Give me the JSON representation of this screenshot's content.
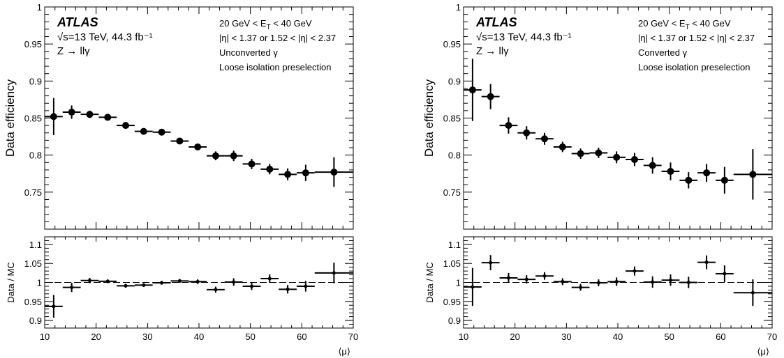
{
  "colors": {
    "markers": "#000000",
    "reference_line": "#000000",
    "background": "#ffffff"
  },
  "chart_data": [
    {
      "type": "scatter",
      "panel": "left",
      "experiment": "ATLAS",
      "energy_lumi": "√s=13 TeV, 44.3 fb⁻¹",
      "process": "Z → llγ",
      "et_cut": "20 GeV < E_T < 40 GeV",
      "eta_cut": "|η| < 1.37 or 1.52 < |η| < 2.37",
      "category": "Unconverted γ",
      "selection": "Loose isolation preselection",
      "xlabel": "⟨μ⟩",
      "xlim": [
        10,
        70
      ],
      "xticks": [
        "10",
        "20",
        "30",
        "40",
        "50",
        "60",
        "70"
      ],
      "main": {
        "ylabel": "Data efficiency",
        "ylim": [
          0.7,
          1.0
        ],
        "yticks": [
          "0.75",
          "0.8",
          "0.85",
          "0.9",
          "0.95",
          "1"
        ],
        "points": [
          {
            "x": 11.75,
            "xlo": 10,
            "xhi": 13.5,
            "y": 0.852,
            "err": 0.025
          },
          {
            "x": 15.25,
            "xlo": 13.5,
            "xhi": 17,
            "y": 0.858,
            "err": 0.009
          },
          {
            "x": 18.75,
            "xlo": 17,
            "xhi": 20.5,
            "y": 0.855,
            "err": 0.005
          },
          {
            "x": 22.25,
            "xlo": 20.5,
            "xhi": 24,
            "y": 0.851,
            "err": 0.003
          },
          {
            "x": 25.75,
            "xlo": 24,
            "xhi": 27.5,
            "y": 0.84,
            "err": 0.003
          },
          {
            "x": 29.25,
            "xlo": 27.5,
            "xhi": 31,
            "y": 0.832,
            "err": 0.003
          },
          {
            "x": 32.75,
            "xlo": 31,
            "xhi": 34.5,
            "y": 0.831,
            "err": 0.003
          },
          {
            "x": 36.25,
            "xlo": 34.5,
            "xhi": 38,
            "y": 0.819,
            "err": 0.003
          },
          {
            "x": 39.75,
            "xlo": 38,
            "xhi": 41.5,
            "y": 0.811,
            "err": 0.004
          },
          {
            "x": 43.25,
            "xlo": 41.5,
            "xhi": 45,
            "y": 0.799,
            "err": 0.006
          },
          {
            "x": 46.75,
            "xlo": 45,
            "xhi": 48.5,
            "y": 0.799,
            "err": 0.007
          },
          {
            "x": 50.25,
            "xlo": 48.5,
            "xhi": 52,
            "y": 0.788,
            "err": 0.007
          },
          {
            "x": 53.75,
            "xlo": 52,
            "xhi": 55.5,
            "y": 0.781,
            "err": 0.007
          },
          {
            "x": 57.25,
            "xlo": 55.5,
            "xhi": 59,
            "y": 0.774,
            "err": 0.008
          },
          {
            "x": 60.75,
            "xlo": 59,
            "xhi": 62.5,
            "y": 0.776,
            "err": 0.011
          },
          {
            "x": 66.25,
            "xlo": 62.5,
            "xhi": 70,
            "y": 0.777,
            "err": 0.02
          }
        ]
      },
      "ratio": {
        "ylabel": "Data / MC",
        "ylim": [
          0.88,
          1.12
        ],
        "yticks": [
          "0.9",
          "0.95",
          "1",
          "1.05",
          "1.1"
        ],
        "reference": 1.0,
        "points": [
          {
            "x": 11.75,
            "xlo": 10,
            "xhi": 13.5,
            "y": 0.937,
            "err": 0.03
          },
          {
            "x": 15.25,
            "xlo": 13.5,
            "xhi": 17,
            "y": 0.987,
            "err": 0.012
          },
          {
            "x": 18.75,
            "xlo": 17,
            "xhi": 20.5,
            "y": 1.005,
            "err": 0.007
          },
          {
            "x": 22.25,
            "xlo": 20.5,
            "xhi": 24,
            "y": 1.003,
            "err": 0.005
          },
          {
            "x": 25.75,
            "xlo": 24,
            "xhi": 27.5,
            "y": 0.991,
            "err": 0.005
          },
          {
            "x": 29.25,
            "xlo": 27.5,
            "xhi": 31,
            "y": 0.993,
            "err": 0.005
          },
          {
            "x": 32.75,
            "xlo": 31,
            "xhi": 34.5,
            "y": 0.999,
            "err": 0.005
          },
          {
            "x": 36.25,
            "xlo": 34.5,
            "xhi": 38,
            "y": 1.004,
            "err": 0.005
          },
          {
            "x": 39.75,
            "xlo": 38,
            "xhi": 41.5,
            "y": 1.002,
            "err": 0.006
          },
          {
            "x": 43.25,
            "xlo": 41.5,
            "xhi": 45,
            "y": 0.981,
            "err": 0.008
          },
          {
            "x": 46.75,
            "xlo": 45,
            "xhi": 48.5,
            "y": 1.001,
            "err": 0.01
          },
          {
            "x": 50.25,
            "xlo": 48.5,
            "xhi": 52,
            "y": 0.99,
            "err": 0.01
          },
          {
            "x": 53.75,
            "xlo": 52,
            "xhi": 55.5,
            "y": 1.01,
            "err": 0.011
          },
          {
            "x": 57.25,
            "xlo": 55.5,
            "xhi": 59,
            "y": 0.982,
            "err": 0.011
          },
          {
            "x": 60.75,
            "xlo": 59,
            "xhi": 62.5,
            "y": 0.99,
            "err": 0.014
          },
          {
            "x": 66.25,
            "xlo": 62.5,
            "xhi": 70,
            "y": 1.025,
            "err": 0.027
          }
        ]
      }
    },
    {
      "type": "scatter",
      "panel": "right",
      "experiment": "ATLAS",
      "energy_lumi": "√s=13 TeV, 44.3 fb⁻¹",
      "process": "Z → llγ",
      "et_cut": "20 GeV < E_T < 40 GeV",
      "eta_cut": "|η| < 1.37 or 1.52 < |η| < 2.37",
      "category": "Converted γ",
      "selection": "Loose isolation preselection",
      "xlabel": "⟨μ⟩",
      "xlim": [
        10,
        70
      ],
      "xticks": [
        "10",
        "20",
        "30",
        "40",
        "50",
        "60",
        "70"
      ],
      "main": {
        "ylabel": "Data efficiency",
        "ylim": [
          0.7,
          1.0
        ],
        "yticks": [
          "0.75",
          "0.8",
          "0.85",
          "0.9",
          "0.95",
          "1"
        ],
        "points": [
          {
            "x": 11.75,
            "xlo": 10,
            "xhi": 13.5,
            "y": 0.888,
            "err": 0.042
          },
          {
            "x": 15.25,
            "xlo": 13.5,
            "xhi": 17,
            "y": 0.879,
            "err": 0.017
          },
          {
            "x": 18.75,
            "xlo": 17,
            "xhi": 20.5,
            "y": 0.84,
            "err": 0.011
          },
          {
            "x": 22.25,
            "xlo": 20.5,
            "xhi": 24,
            "y": 0.83,
            "err": 0.009
          },
          {
            "x": 25.75,
            "xlo": 24,
            "xhi": 27.5,
            "y": 0.822,
            "err": 0.008
          },
          {
            "x": 29.25,
            "xlo": 27.5,
            "xhi": 31,
            "y": 0.811,
            "err": 0.007
          },
          {
            "x": 32.75,
            "xlo": 31,
            "xhi": 34.5,
            "y": 0.802,
            "err": 0.007
          },
          {
            "x": 36.25,
            "xlo": 34.5,
            "xhi": 38,
            "y": 0.803,
            "err": 0.007
          },
          {
            "x": 39.75,
            "xlo": 38,
            "xhi": 41.5,
            "y": 0.797,
            "err": 0.008
          },
          {
            "x": 43.25,
            "xlo": 41.5,
            "xhi": 45,
            "y": 0.794,
            "err": 0.009
          },
          {
            "x": 46.75,
            "xlo": 45,
            "xhi": 48.5,
            "y": 0.786,
            "err": 0.011
          },
          {
            "x": 50.25,
            "xlo": 48.5,
            "xhi": 52,
            "y": 0.778,
            "err": 0.012
          },
          {
            "x": 53.75,
            "xlo": 52,
            "xhi": 55.5,
            "y": 0.766,
            "err": 0.011
          },
          {
            "x": 57.25,
            "xlo": 55.5,
            "xhi": 59,
            "y": 0.776,
            "err": 0.012
          },
          {
            "x": 60.75,
            "xlo": 59,
            "xhi": 62.5,
            "y": 0.766,
            "err": 0.018
          },
          {
            "x": 66.25,
            "xlo": 62.5,
            "xhi": 70,
            "y": 0.774,
            "err": 0.034
          }
        ]
      },
      "ratio": {
        "ylabel": "Data / MC",
        "ylim": [
          0.88,
          1.12
        ],
        "yticks": [
          "0.9",
          "0.95",
          "1",
          "1.05",
          "1.1"
        ],
        "reference": 1.0,
        "points": [
          {
            "x": 11.75,
            "xlo": 10,
            "xhi": 13.5,
            "y": 0.988,
            "err": 0.05
          },
          {
            "x": 15.25,
            "xlo": 13.5,
            "xhi": 17,
            "y": 1.052,
            "err": 0.02
          },
          {
            "x": 18.75,
            "xlo": 17,
            "xhi": 20.5,
            "y": 1.012,
            "err": 0.013
          },
          {
            "x": 22.25,
            "xlo": 20.5,
            "xhi": 24,
            "y": 1.008,
            "err": 0.011
          },
          {
            "x": 25.75,
            "xlo": 24,
            "xhi": 27.5,
            "y": 1.017,
            "err": 0.01
          },
          {
            "x": 29.25,
            "xlo": 27.5,
            "xhi": 31,
            "y": 1.002,
            "err": 0.009
          },
          {
            "x": 32.75,
            "xlo": 31,
            "xhi": 34.5,
            "y": 0.987,
            "err": 0.009
          },
          {
            "x": 36.25,
            "xlo": 34.5,
            "xhi": 38,
            "y": 0.999,
            "err": 0.009
          },
          {
            "x": 39.75,
            "xlo": 38,
            "xhi": 41.5,
            "y": 1.002,
            "err": 0.011
          },
          {
            "x": 43.25,
            "xlo": 41.5,
            "xhi": 45,
            "y": 1.03,
            "err": 0.012
          },
          {
            "x": 46.75,
            "xlo": 45,
            "xhi": 48.5,
            "y": 1.001,
            "err": 0.015
          },
          {
            "x": 50.25,
            "xlo": 48.5,
            "xhi": 52,
            "y": 1.006,
            "err": 0.015
          },
          {
            "x": 53.75,
            "xlo": 52,
            "xhi": 55.5,
            "y": 1.0,
            "err": 0.015
          },
          {
            "x": 57.25,
            "xlo": 55.5,
            "xhi": 59,
            "y": 1.053,
            "err": 0.018
          },
          {
            "x": 60.75,
            "xlo": 59,
            "xhi": 62.5,
            "y": 1.023,
            "err": 0.022
          },
          {
            "x": 66.25,
            "xlo": 62.5,
            "xhi": 70,
            "y": 0.973,
            "err": 0.035
          }
        ]
      }
    }
  ]
}
